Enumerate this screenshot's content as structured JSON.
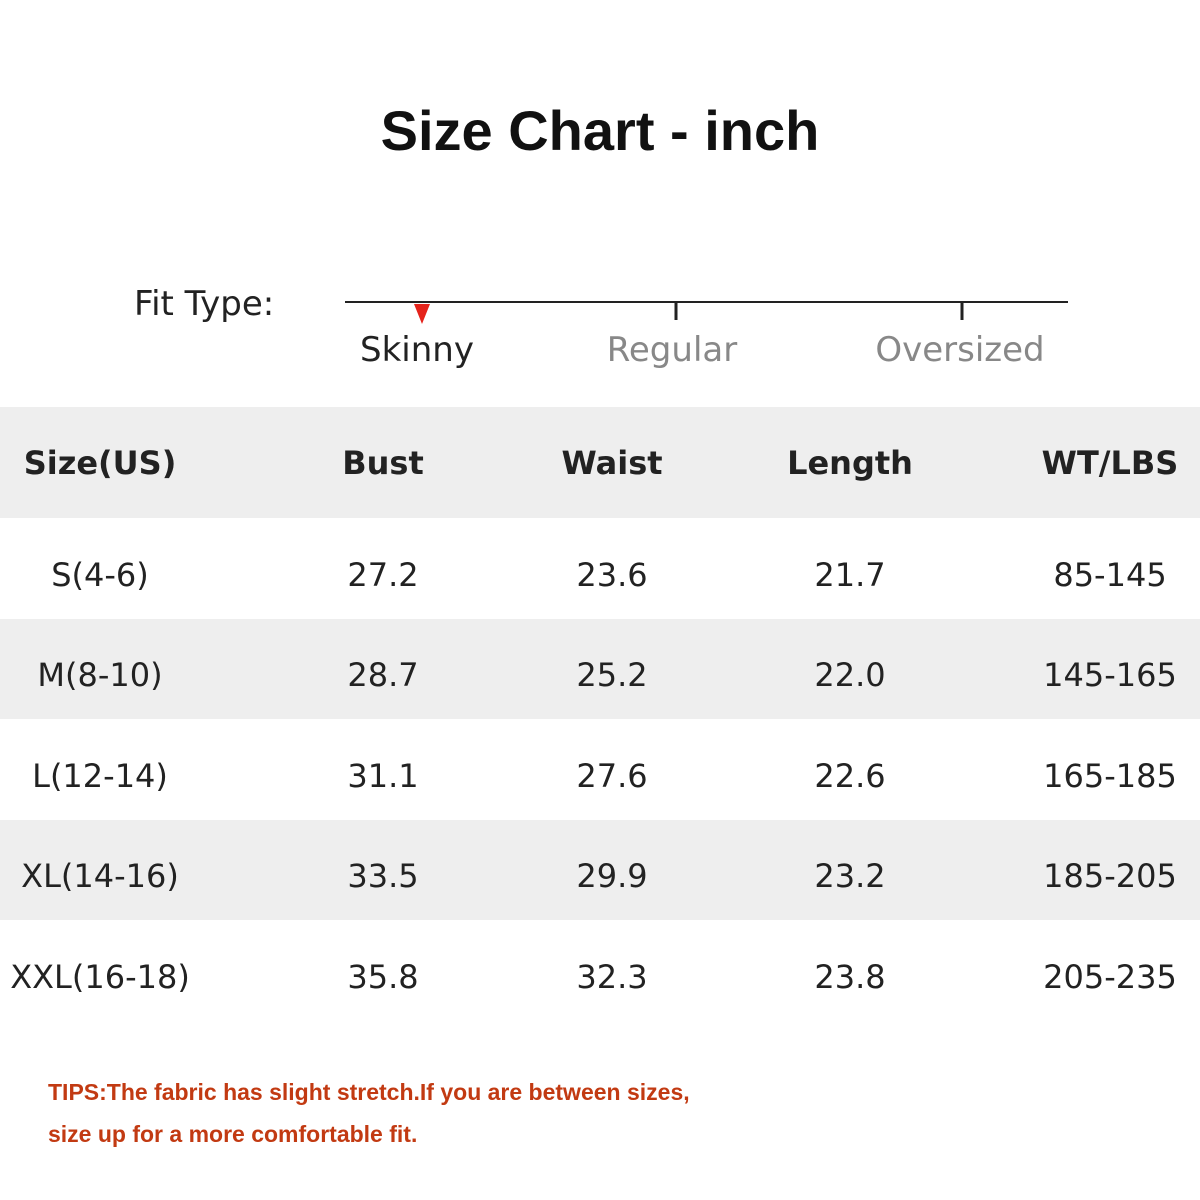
{
  "header": {
    "title": "Size Chart - inch"
  },
  "fit": {
    "label": "Fit Type:",
    "options": [
      "Skinny",
      "Regular",
      "Oversized"
    ],
    "selected": 0
  },
  "table": {
    "columns": [
      "Size(US)",
      "Bust",
      "Waist",
      "Length",
      "WT/LBS"
    ],
    "rows": [
      [
        "S(4-6)",
        "27.2",
        "23.6",
        "21.7",
        "85-145"
      ],
      [
        "M(8-10)",
        "28.7",
        "25.2",
        "22.0",
        "145-165"
      ],
      [
        "L(12-14)",
        "31.1",
        "27.6",
        "22.6",
        "165-185"
      ],
      [
        "XL(14-16)",
        "33.5",
        "29.9",
        "23.2",
        "185-205"
      ],
      [
        "XXL(16-18)",
        "35.8",
        "32.3",
        "23.8",
        "205-235"
      ]
    ]
  },
  "tips": [
    "TIPS:The fabric has slight stretch.If you are between sizes,",
    "size up for a more comfortable fit."
  ]
}
